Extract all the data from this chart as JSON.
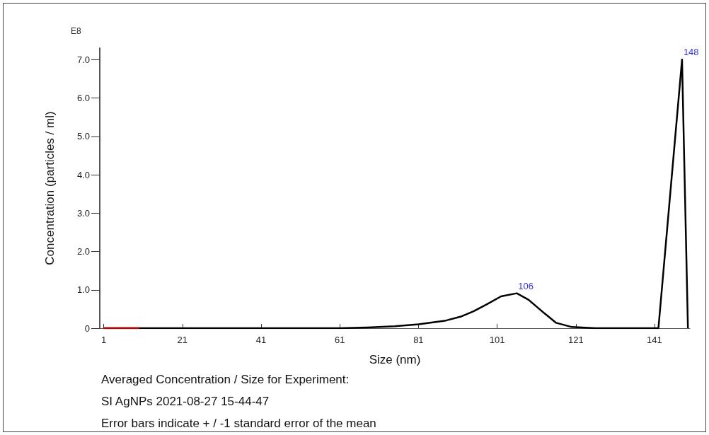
{
  "chart_data": {
    "type": "line",
    "xlabel": "Size (nm)",
    "ylabel": "Concentration (particles / ml)",
    "series": [
      {
        "color": "#000000",
        "x": [
          1,
          10,
          20,
          30,
          40,
          50,
          61,
          68,
          75,
          81,
          88,
          92,
          95,
          98.5,
          102,
          106,
          109,
          113,
          116,
          120,
          126,
          135,
          142,
          148,
          149.5
        ],
        "values": [
          0,
          0,
          0,
          0,
          0,
          0,
          0,
          0.02,
          0.05,
          0.1,
          0.2,
          0.31,
          0.44,
          0.63,
          0.83,
          0.91,
          0.74,
          0.39,
          0.14,
          0.03,
          0,
          0,
          0,
          7.0,
          0
        ]
      },
      {
        "color": "#c00000",
        "x": [
          1,
          5,
          10
        ],
        "values": [
          0,
          0,
          0
        ]
      }
    ],
    "xlim": [
      0,
      150
    ],
    "xticks": [
      1,
      21,
      41,
      61,
      81,
      101,
      121,
      141
    ],
    "ylim": [
      0,
      7.3
    ],
    "yticks": [
      0,
      {
        "value": 1,
        "label": "1.0"
      },
      {
        "value": 2,
        "label": "2.0"
      },
      {
        "value": 3,
        "label": "3.0"
      },
      {
        "value": 4,
        "label": "4.0"
      },
      {
        "value": 5,
        "label": "5.0"
      },
      {
        "value": 6,
        "label": "6.0"
      },
      {
        "value": 7,
        "label": "7.0"
      }
    ],
    "grid": false,
    "marker": "none",
    "line_style": "solid",
    "annotations": [
      "E8",
      {
        "text": "106",
        "x": 106,
        "y": 0.91
      },
      {
        "text": "148",
        "x": 148,
        "y": 7.0
      },
      "Averaged Concentration / Size for Experiment:",
      "SI AgNPs 2021-08-27 15-44-47",
      "Error bars indicate + / -1 standard error of the mean"
    ]
  }
}
